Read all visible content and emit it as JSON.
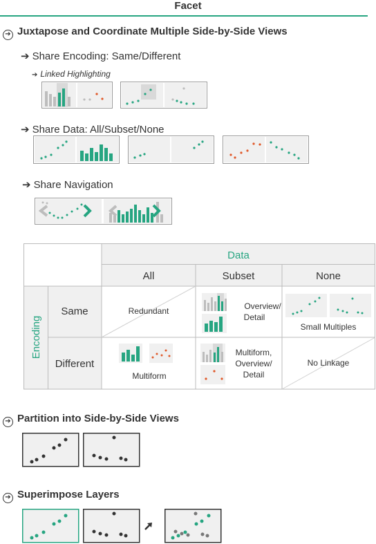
{
  "title": "Facet",
  "sections": {
    "juxtapose": {
      "heading": "Juxtapose and Coordinate Multiple Side-by-Side Views",
      "share_encoding": "Share Encoding: Same/Different",
      "linked_highlighting": "Linked Highlighting",
      "share_data": "Share Data: All/Subset/None",
      "share_navigation": "Share Navigation"
    },
    "partition": {
      "heading": "Partition into Side-by-Side Views"
    },
    "superimpose": {
      "heading": "Superimpose Layers"
    }
  },
  "matrix": {
    "data_label": "Data",
    "encoding_label": "Encoding",
    "columns": [
      "All",
      "Subset",
      "None"
    ],
    "rows": [
      "Same",
      "Different"
    ],
    "cells": {
      "same_all": "Redundant",
      "same_subset": [
        "Overview/",
        "Detail"
      ],
      "same_none": "Small Multiples",
      "different_all": "Multiform",
      "different_subset": [
        "Multiform,",
        "Overview/",
        "Detail"
      ],
      "different_none": "No Linkage"
    }
  },
  "colors": {
    "accent": "#26a581",
    "orange": "#e0592a",
    "gray_panel": "#f0f0f0",
    "border": "#999999",
    "dark_dot": "#333333"
  },
  "icons": [
    "circled-arrow-icon",
    "arrow-right-icon",
    "chevron-left-icon",
    "chevron-right-icon"
  ]
}
